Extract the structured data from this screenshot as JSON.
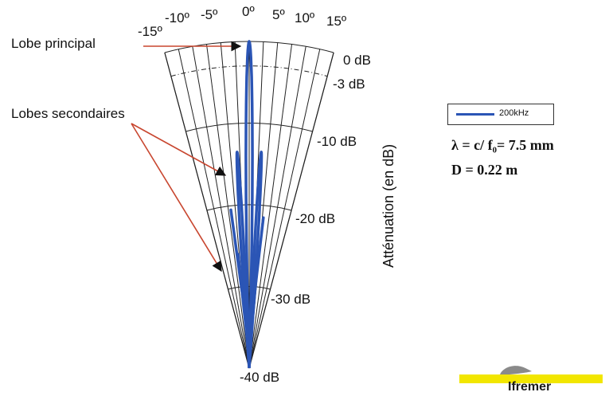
{
  "angles": [
    "-15º",
    "-10º",
    "-5º",
    "0º",
    "5º",
    "10º",
    "15º"
  ],
  "db_labels": [
    "0 dB",
    "-3 dB",
    "-10 dB",
    "-20 dB",
    "-30 dB",
    "-40 dB"
  ],
  "annotations": {
    "main_lobe": "Lobe principal",
    "side_lobes": "Lobes secondaires"
  },
  "axis_label": "Atténuation (en dB)",
  "legend": {
    "series": "200kHz",
    "color": "#2b55b5"
  },
  "formula": {
    "lambda": "λ = c/ f₀= 7.5 mm",
    "d": "D = 0.22 m"
  },
  "logo": {
    "text": "Ifremer",
    "bar_color": "#f2e600"
  }
}
